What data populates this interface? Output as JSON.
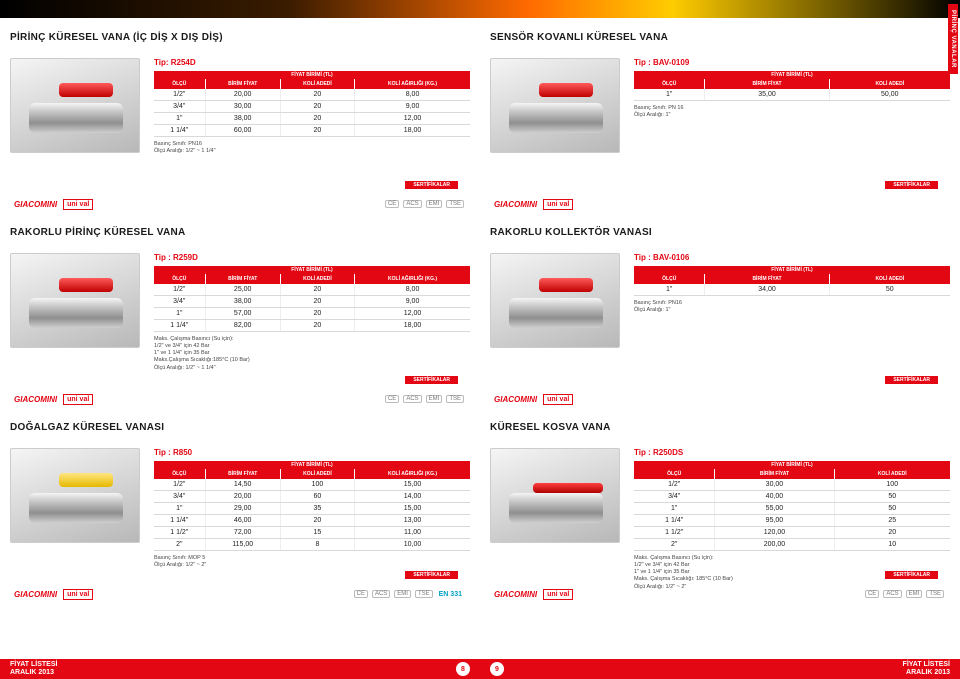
{
  "side_tab": "PİRİNÇ VANALAR",
  "colors": {
    "brand_red": "#e30613",
    "text": "#333333",
    "grid": "#d9d9d9"
  },
  "cert": {
    "brand": "GIACOMINI",
    "sub": "uni val",
    "label": "SERTİFİKALAR",
    "icons": [
      "CE",
      "ACS",
      "EMI",
      "TSE"
    ],
    "en331": "EN 331"
  },
  "footer": {
    "line1": "FİYAT LİSTESİ",
    "line2": "ARALIK 2013",
    "page_left": "8",
    "page_right": "9"
  },
  "headers4": [
    "ÖLÇÜ",
    "BİRİM FİYAT",
    "KOLİ ADEDİ",
    "KOLİ AĞIRLIĞI (KG.)"
  ],
  "headers3": [
    "ÖLÇÜ",
    "BİRİM FİYAT",
    "KOLİ ADEDİ"
  ],
  "unit_header": "FİYAT BİRİMİ (TL)",
  "products": {
    "p1": {
      "title": "PİRİNÇ KÜRESEL VANA (İÇ DİŞ X DIŞ DİŞ)",
      "tip": "Tip: R254D",
      "rows": [
        [
          "1/2\"",
          "20,00",
          "20",
          "8,00"
        ],
        [
          "3/4\"",
          "30,00",
          "20",
          "9,00"
        ],
        [
          "1\"",
          "38,00",
          "20",
          "12,00"
        ],
        [
          "1 1/4\"",
          "60,00",
          "20",
          "18,00"
        ]
      ],
      "notes": [
        "Basınç Sınıfı: PN16",
        "Ölçü Aralığı: 1/2\" ~ 1 1/4\""
      ]
    },
    "p2": {
      "title": "SENSÖR KOVANLI KÜRESEL VANA",
      "tip": "Tip : BAV-0109",
      "rows": [
        [
          "1\"",
          "35,00",
          "50,00"
        ]
      ],
      "notes": [
        "Basınç Sınıfı: PN 16",
        "Ölçü Aralığı: 1\""
      ]
    },
    "p3": {
      "title": "RAKORLU PİRİNÇ KÜRESEL VANA",
      "tip": "Tip : R259D",
      "rows": [
        [
          "1/2\"",
          "25,00",
          "20",
          "8,00"
        ],
        [
          "3/4\"",
          "38,00",
          "20",
          "9,00"
        ],
        [
          "1\"",
          "57,00",
          "20",
          "12,00"
        ],
        [
          "1 1/4\"",
          "82,00",
          "20",
          "18,00"
        ]
      ],
      "notes": [
        "Maks. Çalışma Basıncı (Su için):",
        "1/2\" ve 3/4\" için 42 Bar",
        "1\" ve 1 1/4\" için 35 Bar",
        "Maks.Çalışma Sıcaklığı:185°C (10 Bar)",
        "Ölçü Aralığı: 1/2\" ~ 1 1/4\""
      ]
    },
    "p4": {
      "title": "RAKORLU KOLLEKTÖR VANASI",
      "tip": "Tip : BAV-0106",
      "rows": [
        [
          "1\"",
          "34,00",
          "50"
        ]
      ],
      "notes": [
        "Basınç Sınıfı: PN16",
        "Ölçü Aralığı: 1\""
      ]
    },
    "p5": {
      "title": "DOĞALGAZ KÜRESEL VANASI",
      "tip": "Tip : R850",
      "rows": [
        [
          "1/2\"",
          "14,50",
          "100",
          "15,00"
        ],
        [
          "3/4\"",
          "20,00",
          "60",
          "14,00"
        ],
        [
          "1\"",
          "29,00",
          "35",
          "15,00"
        ],
        [
          "1 1/4\"",
          "46,00",
          "20",
          "13,00"
        ],
        [
          "1 1/2\"",
          "72,00",
          "15",
          "11,00"
        ],
        [
          "2\"",
          "115,00",
          "8",
          "10,00"
        ]
      ],
      "notes": [
        "Basınç Sınıfı: MOP 5",
        "Ölçü Aralığı: 1/2\" ~ 2\""
      ]
    },
    "p6": {
      "title": "KÜRESEL KOSVA VANA",
      "tip": "Tip : R250DS",
      "rows": [
        [
          "1/2\"",
          "30,00",
          "100"
        ],
        [
          "3/4\"",
          "40,00",
          "50"
        ],
        [
          "1\"",
          "55,00",
          "50"
        ],
        [
          "1 1/4\"",
          "95,00",
          "25"
        ],
        [
          "1 1/2\"",
          "120,00",
          "20"
        ],
        [
          "2\"",
          "200,00",
          "10"
        ]
      ],
      "notes": [
        "Maks. Çalışma Basıncı (Su için):",
        "1/2\" ve 3/4\" için 42 Bar",
        "1\" ve 1 1/4\" için 35 Bar",
        "Maks. Çalışma Sıcaklığı: 185°C (10 Bar)",
        "Ölçü Aralığı: 1/2\" ~ 2\""
      ]
    }
  }
}
